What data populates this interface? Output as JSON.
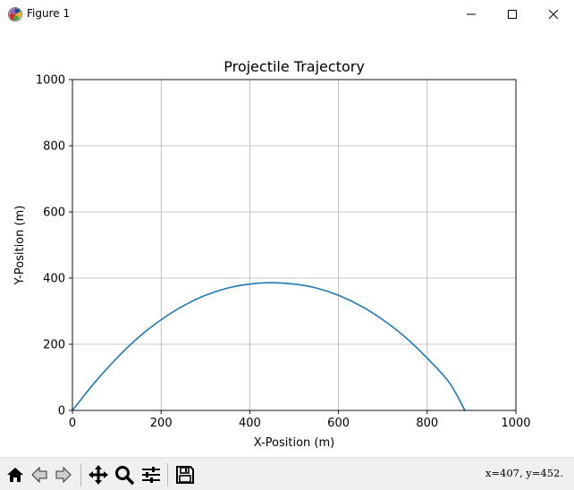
{
  "window": {
    "title": "Figure 1",
    "app_icon": "matplotlib-icon",
    "controls": [
      "minimize-icon",
      "maximize-icon",
      "close-icon"
    ]
  },
  "toolbar": {
    "tools": [
      "home-icon",
      "back-arrow-icon",
      "forward-arrow-icon",
      "pan-move-icon",
      "zoom-magnifier-icon",
      "subplots-configure-icon",
      "save-floppy-icon"
    ],
    "coords_text": "x=407, y=452."
  },
  "chart_data": {
    "type": "line",
    "title": "Projectile Trajectory",
    "xlabel": "X-Position (m)",
    "ylabel": "Y-Position (m)",
    "xlim": [
      0,
      1000
    ],
    "ylim": [
      0,
      1000
    ],
    "xticks": [
      "0",
      "200",
      "400",
      "600",
      "800",
      "1000"
    ],
    "yticks": [
      "0",
      "200",
      "400",
      "600",
      "800",
      "1000"
    ],
    "grid": true,
    "legend": "none",
    "series": [
      {
        "color": "#1f77b4",
        "x": [
          0,
          50,
          100,
          150,
          200,
          250,
          300,
          350,
          400,
          445,
          500,
          550,
          600,
          650,
          700,
          750,
          800,
          850,
          885
        ],
        "y": [
          0,
          84,
          158,
          222,
          274,
          316,
          348,
          370,
          382,
          386,
          382,
          370,
          348,
          316,
          274,
          222,
          158,
          84,
          0
        ]
      }
    ]
  }
}
